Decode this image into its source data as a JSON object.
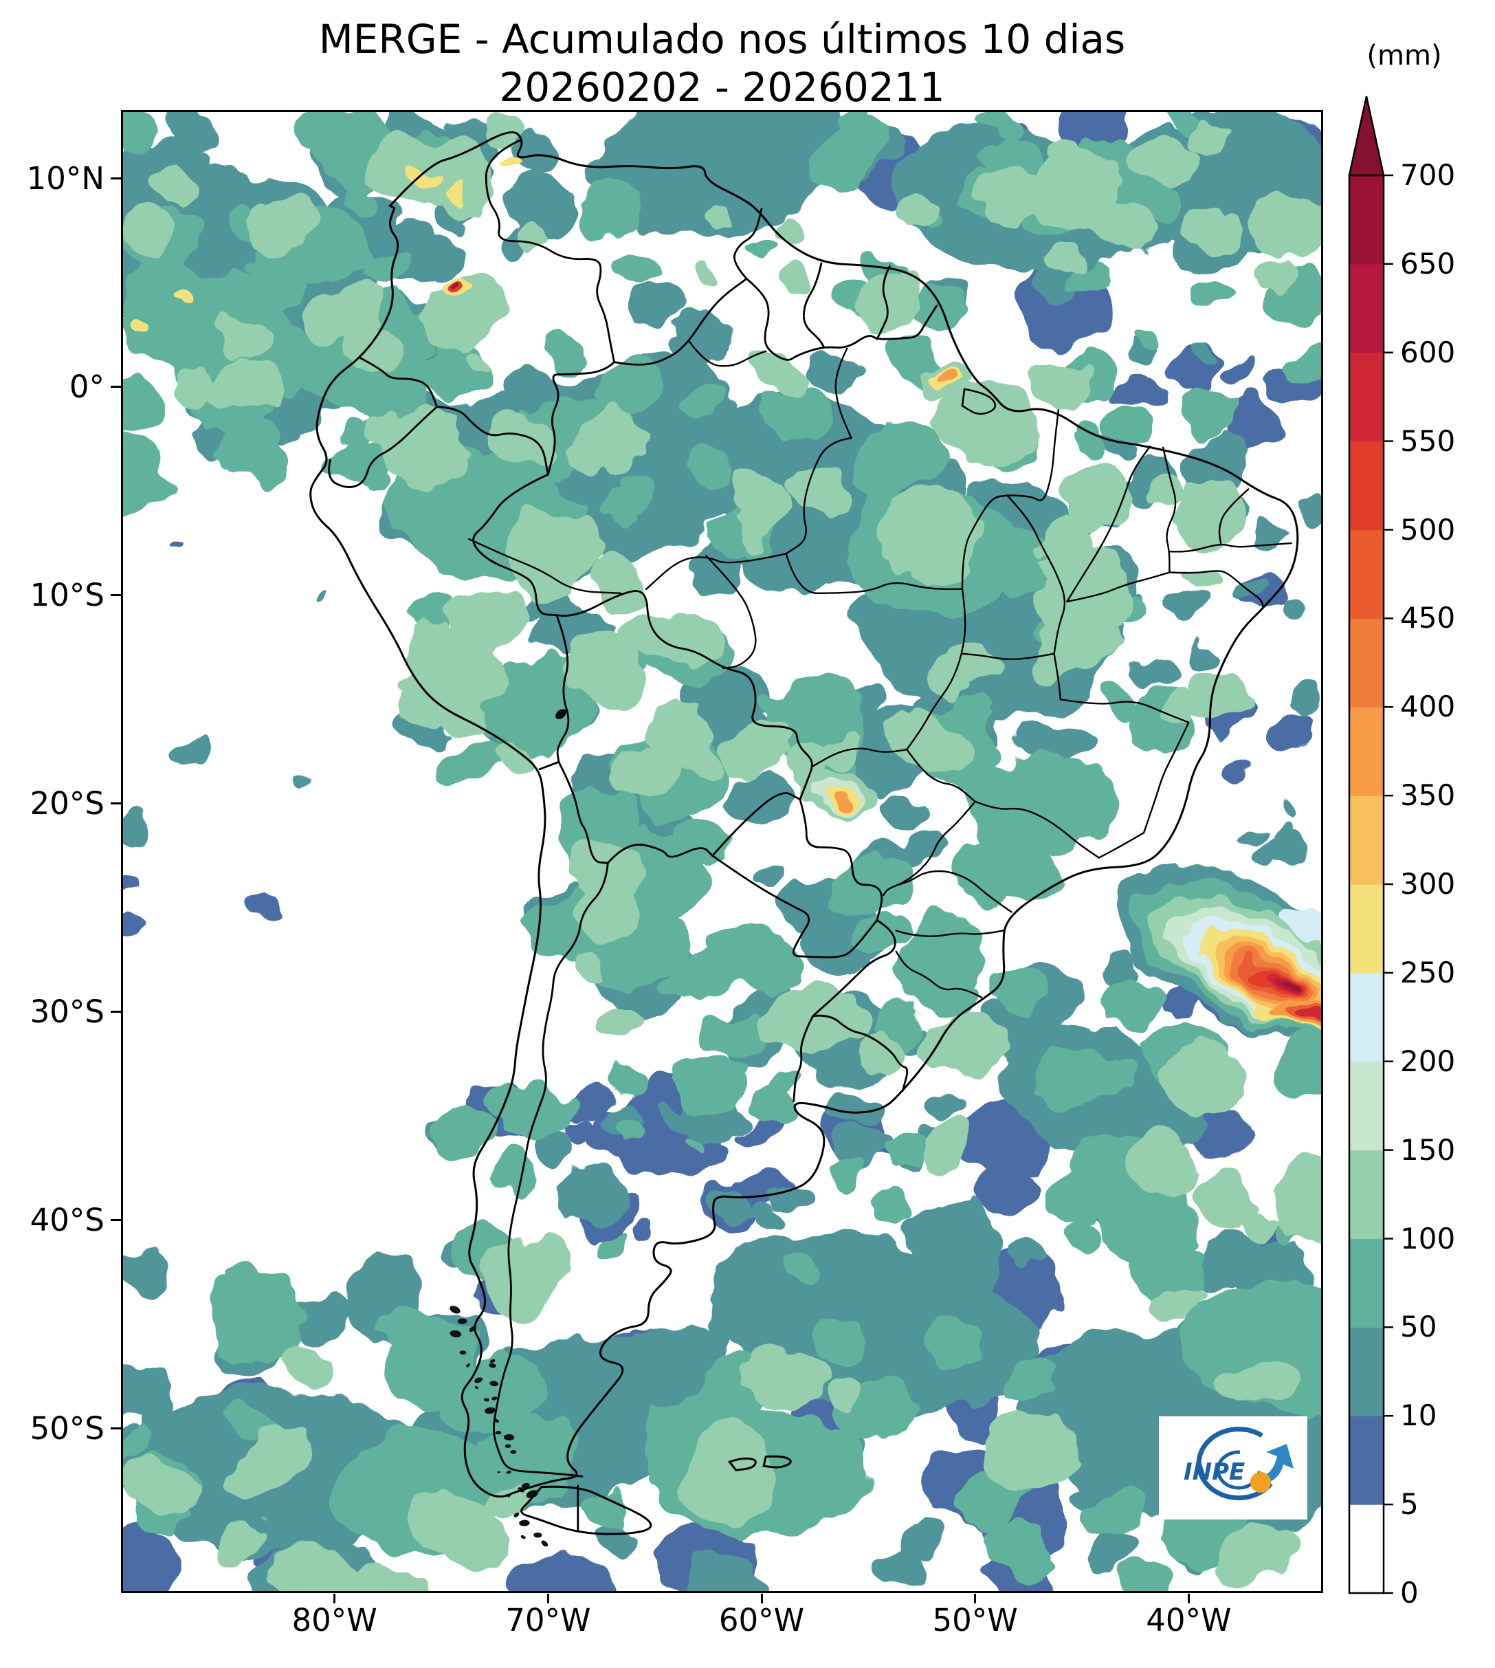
{
  "title": {
    "line1": "MERGE - Acumulado nos últimos 10 dias",
    "line2": "20260202 - 20260211"
  },
  "colorbar": {
    "unit_label": "(mm)",
    "tick_labels": [
      "0",
      "5",
      "10",
      "50",
      "100",
      "150",
      "200",
      "250",
      "300",
      "350",
      "400",
      "450",
      "500",
      "550",
      "600",
      "650",
      "700"
    ],
    "segment_colors": [
      "#ffffff",
      "#4c6da6",
      "#4f959a",
      "#60b29c",
      "#96cfae",
      "#c8e7ce",
      "#d5edf4",
      "#f3e17c",
      "#f8c05c",
      "#f79b49",
      "#f07c3c",
      "#ea5b30",
      "#e03d2a",
      "#d02736",
      "#b51a3e",
      "#9b1337"
    ],
    "over_arrow_color": "#85102f"
  },
  "axes": {
    "lat_ticks": [
      "10°N",
      "0°",
      "10°S",
      "20°S",
      "30°S",
      "40°S",
      "50°S"
    ],
    "lon_ticks": [
      "80°W",
      "70°W",
      "60°W",
      "50°W",
      "40°W"
    ]
  },
  "logo": {
    "text": "INPE"
  },
  "chart_data": {
    "type": "heatmap",
    "title": "MERGE - Acumulado nos últimos 10 dias",
    "subtitle": "20260202 - 20260211",
    "variable": "accumulated precipitation over South America",
    "unit": "mm",
    "period": {
      "start": "20260202",
      "end": "20260211"
    },
    "levels_mm": [
      0,
      5,
      10,
      50,
      100,
      150,
      200,
      250,
      300,
      350,
      400,
      450,
      500,
      550,
      600,
      650,
      700
    ],
    "colors": [
      "#ffffff",
      "#4c6da6",
      "#4f959a",
      "#60b29c",
      "#96cfae",
      "#c8e7ce",
      "#d5edf4",
      "#f3e17c",
      "#f8c05c",
      "#f79b49",
      "#f07c3c",
      "#ea5b30",
      "#e03d2a",
      "#d02736",
      "#b51a3e",
      "#9b1337"
    ],
    "colorbar_extends_above_max": true,
    "extent": {
      "lon_deg": [
        -90,
        -33.7
      ],
      "lat_deg": [
        -57.9,
        13.3
      ]
    },
    "lat_tick_values_deg": [
      10,
      0,
      -10,
      -20,
      -30,
      -40,
      -50
    ],
    "lon_tick_values_deg": [
      -80,
      -70,
      -60,
      -50,
      -40
    ],
    "notable_maxima": [
      {
        "lon_deg": -36,
        "lat_deg": -28.5,
        "value_mm": ">650",
        "location": "South Atlantic off southern Brazil / Uruguay"
      },
      {
        "lon_deg": -34.3,
        "lat_deg": -30.2,
        "value_mm": "450-550",
        "location": "secondary streak southeast of main maximum"
      },
      {
        "lon_deg": -56.4,
        "lat_deg": -19.7,
        "value_mm": "300-400",
        "location": "near Paraguay / Mato Grosso do Sul border"
      },
      {
        "lon_deg": -51.2,
        "lat_deg": 0.5,
        "value_mm": "300-400",
        "location": "Amapá coast near the Equator"
      },
      {
        "lon_deg": -74.3,
        "lat_deg": 4.9,
        "value_mm": "500-700",
        "location": "small spot over the Colombian Andes"
      }
    ],
    "general_pattern": "widespread 10-150 mm over Amazon, northern South America and southern oceans; dry (<5 mm) over southeast Pacific, northern Chile and parts of eastern Atlantic"
  }
}
